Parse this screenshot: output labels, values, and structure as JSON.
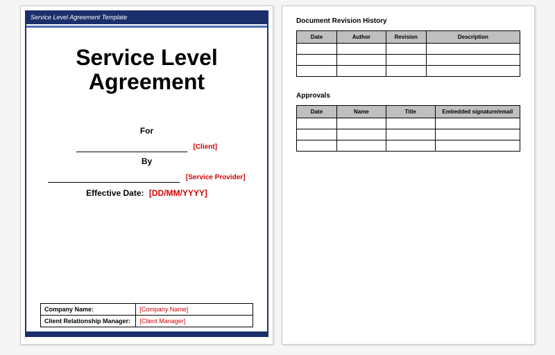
{
  "colors": {
    "primary": "#1b2f6b",
    "accent": "#4a6bb8",
    "placeholder": "#d00000",
    "table_header_bg": "#bfbfbf",
    "page_bg": "#ffffff",
    "canvas_bg": "#f5f5f5",
    "border": "#000000"
  },
  "typography": {
    "title_fontsize_pt": 32,
    "label_fontsize_pt": 12,
    "small_fontsize_pt": 9,
    "table_header_fontsize_pt": 8,
    "font_family": "Arial"
  },
  "page1": {
    "header_text": "Service Level Agreement Template",
    "title_line1": "Service Level",
    "title_line2": "Agreement",
    "for_label": "For",
    "client_placeholder": "[Client]",
    "by_label": "By",
    "provider_placeholder": "[Service Provider]",
    "effective_date_label": "Effective Date:",
    "effective_date_placeholder": "[DD/MM/YYYY]",
    "footer": {
      "rows": [
        {
          "label": "Company Name:",
          "value": "[Company Name]"
        },
        {
          "label": "Client Relationship Manager:",
          "value": "[Client Manager]"
        }
      ]
    }
  },
  "page2": {
    "revision_history": {
      "title": "Document Revision History",
      "columns": [
        "Date",
        "Author",
        "Revision",
        "Description"
      ],
      "column_widths_pct": [
        18,
        22,
        18,
        42
      ],
      "rows": [
        [
          "",
          "",
          "",
          ""
        ],
        [
          "",
          "",
          "",
          ""
        ],
        [
          "",
          "",
          "",
          ""
        ]
      ]
    },
    "approvals": {
      "title": "Approvals",
      "columns": [
        "Date",
        "Name",
        "Title",
        "Embedded signature/email"
      ],
      "column_widths_pct": [
        18,
        22,
        22,
        38
      ],
      "rows": [
        [
          "",
          "",
          "",
          ""
        ],
        [
          "",
          "",
          "",
          ""
        ],
        [
          "",
          "",
          "",
          ""
        ]
      ]
    }
  }
}
